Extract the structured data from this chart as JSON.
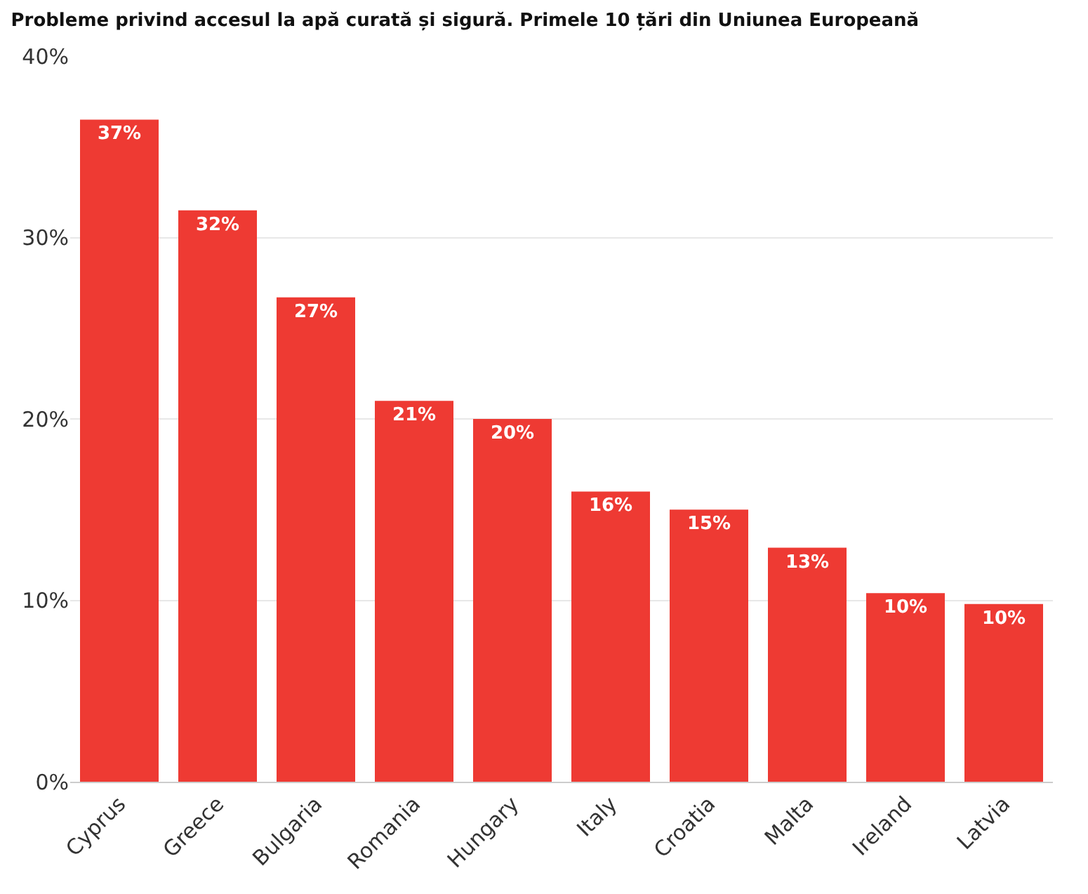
{
  "chart_data": {
    "type": "bar",
    "title": "Probleme privind accesul la apă curată și sigură. Primele 10 țări din Uniunea Europeană",
    "categories": [
      "Cyprus",
      "Greece",
      "Bulgaria",
      "Romania",
      "Hungary",
      "Italy",
      "Croatia",
      "Malta",
      "Ireland",
      "Latvia"
    ],
    "values": [
      36.5,
      31.5,
      26.7,
      21.0,
      20.0,
      16.0,
      15.0,
      12.9,
      10.4,
      9.8
    ],
    "value_labels": [
      "37%",
      "32%",
      "27%",
      "21%",
      "20%",
      "16%",
      "15%",
      "13%",
      "10%",
      "10%"
    ],
    "color": "#ee3a33",
    "ylim": [
      0,
      40
    ],
    "yticks": [
      {
        "value": 0,
        "label": "0%"
      },
      {
        "value": 10,
        "label": "10%"
      },
      {
        "value": 20,
        "label": "20%"
      },
      {
        "value": 30,
        "label": "30%"
      },
      {
        "value": 40,
        "label": "40%"
      }
    ],
    "grid": "y",
    "legend": false
  }
}
